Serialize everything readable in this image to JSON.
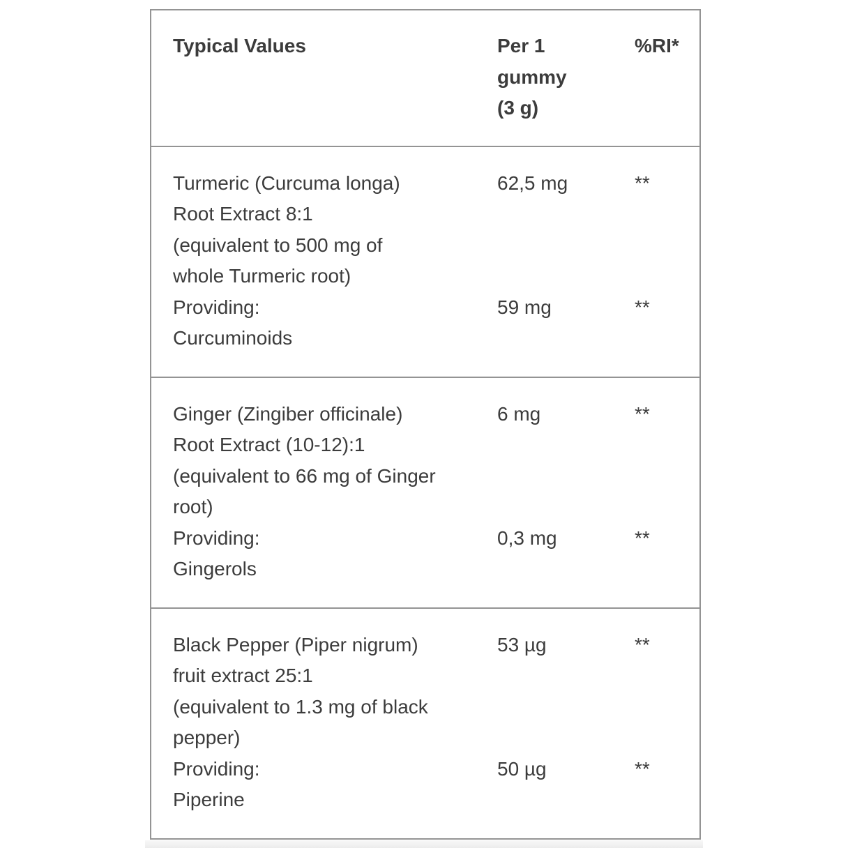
{
  "page": {
    "background": "#ffffff"
  },
  "colors": {
    "table_border": "#949494",
    "text": "#3c3c3c",
    "next_section_strip": "#f0f0f0"
  },
  "table": {
    "header": {
      "typical_values": "Typical Values",
      "per_serving_lines": [
        "Per 1",
        "gummy",
        "(3 g)"
      ],
      "ri": "%RI*"
    },
    "rows": [
      {
        "name_lines": [
          "Turmeric (Curcuma longa)",
          "Root Extract 8:1",
          "(equivalent to 500 mg of",
          "whole Turmeric root)"
        ],
        "amount": "62,5 mg",
        "ri": "**",
        "providing": {
          "label": "Providing:",
          "substance": "Curcuminoids",
          "amount": "59 mg",
          "ri": "**"
        }
      },
      {
        "name_lines": [
          "Ginger (Zingiber officinale)",
          "Root Extract (10-12):1",
          "(equivalent to 66 mg of Ginger",
          "root)"
        ],
        "amount": "6 mg",
        "ri": "**",
        "providing": {
          "label": "Providing:",
          "substance": "Gingerols",
          "amount": "0,3 mg",
          "ri": "**"
        }
      },
      {
        "name_lines": [
          "Black Pepper (Piper nigrum)",
          "fruit extract 25:1",
          "(equivalent to 1.3 mg of black",
          "pepper)"
        ],
        "amount": "53 µg",
        "ri": "**",
        "providing": {
          "label": "Providing:",
          "substance": "Piperine",
          "amount": "50 µg",
          "ri": "**"
        }
      }
    ]
  }
}
